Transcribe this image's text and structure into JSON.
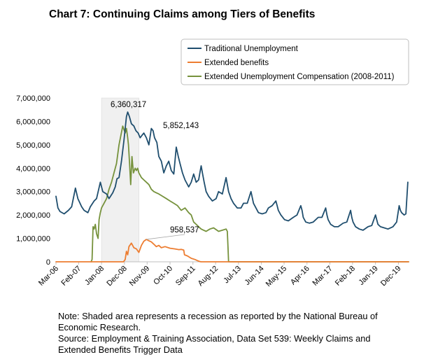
{
  "chart_data": {
    "type": "line",
    "title": "Chart 7: Continuing Claims among Tiers of Benefits",
    "xlabel": "",
    "ylabel": "",
    "ylim": [
      0,
      7000000
    ],
    "yticks": [
      0,
      1000000,
      2000000,
      3000000,
      4000000,
      5000000,
      6000000,
      7000000
    ],
    "xlim": [
      2006.17,
      2020.33
    ],
    "x_tick_labels": [
      "Mar-06",
      "Feb-07",
      "Jan-08",
      "Dec-08",
      "Nov-09",
      "Oct-10",
      "Sep-11",
      "Aug-12",
      "Jul-13",
      "Jun-14",
      "May-15",
      "Apr-16",
      "Mar-17",
      "Feb-18",
      "Jan-19",
      "Dec-19"
    ],
    "x_tick_values": [
      2006.17,
      2007.08,
      2008.0,
      2008.92,
      2009.83,
      2010.75,
      2011.67,
      2012.58,
      2013.5,
      2014.42,
      2015.33,
      2016.25,
      2017.17,
      2018.08,
      2019.0,
      2019.92
    ],
    "legend_position": "top-right",
    "recession": {
      "start": 2008.0,
      "end": 2009.5
    },
    "series": [
      {
        "name": "Traditional Unemployment",
        "color": "#1f4e6e",
        "x": [
          2006.17,
          2006.25,
          2006.33,
          2006.5,
          2006.67,
          2006.8,
          2006.95,
          2007.05,
          2007.2,
          2007.3,
          2007.45,
          2007.55,
          2007.7,
          2007.8,
          2007.95,
          2008.05,
          2008.2,
          2008.3,
          2008.45,
          2008.55,
          2008.62,
          2008.7,
          2008.8,
          2008.9,
          2009.0,
          2009.05,
          2009.12,
          2009.2,
          2009.3,
          2009.38,
          2009.47,
          2009.55,
          2009.62,
          2009.7,
          2009.8,
          2009.9,
          2010.0,
          2010.07,
          2010.13,
          2010.22,
          2010.3,
          2010.4,
          2010.5,
          2010.6,
          2010.7,
          2010.8,
          2010.9,
          2011.0,
          2011.08,
          2011.15,
          2011.25,
          2011.35,
          2011.5,
          2011.6,
          2011.7,
          2011.8,
          2011.9,
          2012.0,
          2012.05,
          2012.12,
          2012.2,
          2012.3,
          2012.45,
          2012.6,
          2012.7,
          2012.85,
          2013.0,
          2013.05,
          2013.1,
          2013.2,
          2013.3,
          2013.45,
          2013.6,
          2013.7,
          2013.85,
          2014.0,
          2014.05,
          2014.1,
          2014.2,
          2014.3,
          2014.45,
          2014.6,
          2014.7,
          2014.85,
          2015.0,
          2015.05,
          2015.1,
          2015.2,
          2015.35,
          2015.5,
          2015.7,
          2015.85,
          2016.0,
          2016.05,
          2016.1,
          2016.2,
          2016.35,
          2016.5,
          2016.7,
          2016.85,
          2017.0,
          2017.05,
          2017.1,
          2017.2,
          2017.35,
          2017.5,
          2017.7,
          2017.85,
          2018.0,
          2018.05,
          2018.1,
          2018.2,
          2018.35,
          2018.5,
          2018.7,
          2018.85,
          2019.0,
          2019.05,
          2019.1,
          2019.2,
          2019.35,
          2019.5,
          2019.7,
          2019.85,
          2019.95,
          2020.0,
          2020.05,
          2020.15,
          2020.22,
          2020.3
        ],
        "values": [
          2800000,
          2300000,
          2150000,
          2050000,
          2200000,
          2350000,
          3150000,
          2700000,
          2350000,
          2200000,
          2100000,
          2350000,
          2600000,
          2700000,
          3400000,
          3000000,
          2900000,
          2700000,
          2950000,
          3200000,
          3550000,
          3600000,
          4300000,
          5200000,
          6200000,
          6400000,
          6200000,
          5900000,
          5800000,
          5600000,
          5500000,
          5300000,
          5400000,
          5500000,
          5300000,
          5000000,
          5700000,
          5600000,
          5300000,
          5100000,
          4500000,
          4300000,
          3800000,
          4100000,
          4300000,
          3900000,
          3750000,
          4900000,
          4500000,
          4200000,
          3800000,
          3500000,
          3200000,
          3400000,
          3750000,
          3400000,
          3500000,
          4100000,
          3800000,
          3400000,
          3000000,
          2800000,
          2600000,
          2700000,
          3000000,
          2900000,
          3600000,
          3300000,
          3000000,
          2700000,
          2500000,
          2300000,
          2300000,
          2500000,
          2500000,
          3000000,
          2750000,
          2500000,
          2300000,
          2100000,
          2050000,
          2100000,
          2300000,
          2400000,
          2600000,
          2400000,
          2200000,
          2000000,
          1800000,
          1750000,
          1900000,
          2000000,
          2400000,
          2200000,
          1900000,
          1700000,
          1650000,
          1700000,
          1900000,
          1900000,
          2300000,
          2000000,
          1800000,
          1600000,
          1500000,
          1500000,
          1650000,
          1700000,
          2200000,
          1900000,
          1700000,
          1500000,
          1400000,
          1350000,
          1500000,
          1550000,
          2000000,
          1800000,
          1600000,
          1500000,
          1450000,
          1400000,
          1500000,
          1700000,
          2400000,
          2200000,
          2100000,
          2000000,
          2050000,
          3400000
        ]
      },
      {
        "name": "Extended benefits",
        "color": "#ed7d31",
        "x": [
          2006.17,
          2008.88,
          2008.95,
          2009.0,
          2009.05,
          2009.1,
          2009.2,
          2009.3,
          2009.4,
          2009.5,
          2009.6,
          2009.7,
          2009.8,
          2009.9,
          2010.0,
          2010.1,
          2010.2,
          2010.3,
          2010.4,
          2010.55,
          2010.75,
          2010.95,
          2011.1,
          2011.2,
          2011.3,
          2011.33,
          2011.45,
          2011.6,
          2011.75,
          2011.85,
          2011.9,
          2011.95,
          2012.0,
          2020.33
        ],
        "values": [
          0,
          0,
          100000,
          450000,
          300000,
          650000,
          800000,
          600000,
          550000,
          400000,
          700000,
          880000,
          958537,
          900000,
          850000,
          750000,
          650000,
          700000,
          600000,
          650000,
          580000,
          550000,
          520000,
          530000,
          500000,
          300000,
          250000,
          150000,
          100000,
          50000,
          30000,
          10000,
          0,
          0
        ]
      },
      {
        "name": "Extended Unemployment Compensation (2008-2011)",
        "color": "#76923c",
        "x": [
          2007.58,
          2007.62,
          2007.66,
          2007.7,
          2007.75,
          2007.8,
          2007.86,
          2007.9,
          2007.95,
          2008.0,
          2008.1,
          2008.2,
          2008.3,
          2008.4,
          2008.5,
          2008.6,
          2008.7,
          2008.85,
          2008.95,
          2009.0,
          2009.05,
          2009.08,
          2009.12,
          2009.17,
          2009.22,
          2009.28,
          2009.35,
          2009.4,
          2009.45,
          2009.5,
          2009.55,
          2009.6,
          2009.7,
          2009.8,
          2009.9,
          2010.0,
          2010.1,
          2010.2,
          2010.3,
          2010.45,
          2010.6,
          2010.75,
          2010.9,
          2011.05,
          2011.2,
          2011.35,
          2011.5,
          2011.6,
          2011.7,
          2011.8,
          2011.9,
          2012.0,
          2012.1,
          2012.2,
          2012.35,
          2012.5,
          2012.7,
          2012.85,
          2013.0,
          2013.05,
          2013.08,
          2013.1,
          2020.33
        ],
        "values": [
          0,
          100000,
          1500000,
          1400000,
          1600000,
          1200000,
          1000000,
          1800000,
          2100000,
          2300000,
          2500000,
          2700000,
          3100000,
          3400000,
          3800000,
          4200000,
          5000000,
          5800000,
          5500000,
          5700000,
          5300000,
          5000000,
          4300000,
          3300000,
          4500000,
          3800000,
          4000000,
          3900000,
          4000000,
          3800000,
          3700000,
          3600000,
          3500000,
          3400000,
          3300000,
          3100000,
          3000000,
          2950000,
          2900000,
          2800000,
          2700000,
          2600000,
          2500000,
          2400000,
          2200000,
          2300000,
          2100000,
          2000000,
          1700000,
          1600000,
          1500000,
          1400000,
          1350000,
          1300000,
          1400000,
          1450000,
          1300000,
          1350000,
          1400000,
          1300000,
          600000,
          0,
          0
        ]
      }
    ],
    "annotations": [
      {
        "text": "6,360,317",
        "x": 2009.08,
        "y": 6360317
      },
      {
        "text": "5,852,143",
        "x": 2009.9,
        "y": 5852143
      },
      {
        "text": "958,537",
        "x": 2009.8,
        "y": 958537
      }
    ]
  },
  "note": {
    "line1": "Note: Shaded area represents a recession as reported by the National Bureau of",
    "line2": "Economic Research.",
    "line3": "Source: Employment & Training Association, Data Set 539: Weekly Claims and",
    "line4": "Extended Benefits Trigger Data"
  }
}
